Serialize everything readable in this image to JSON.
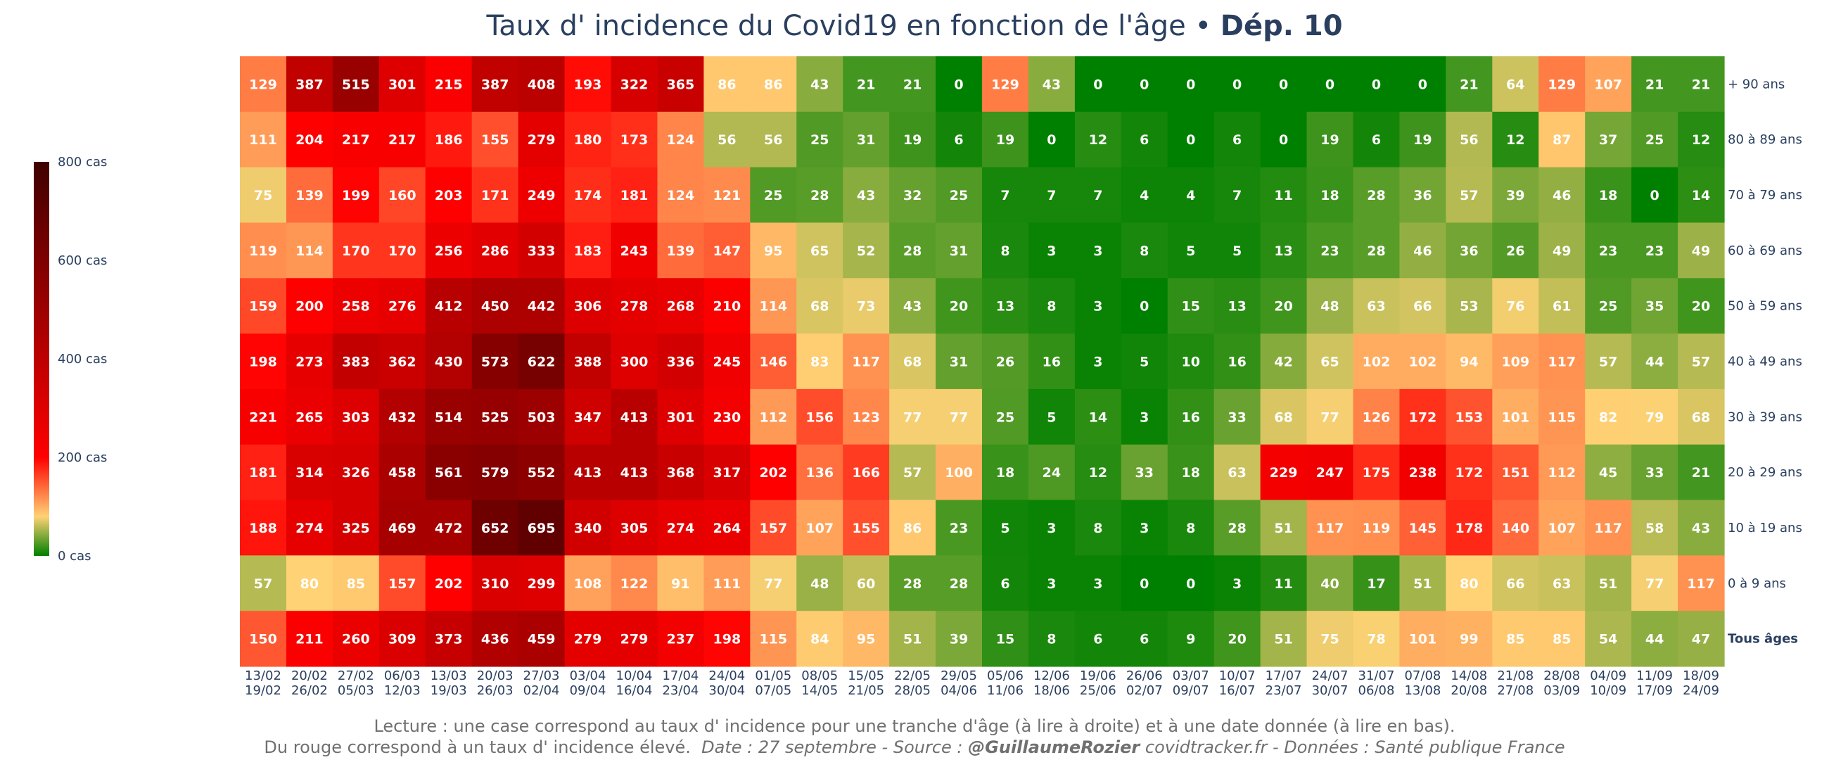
{
  "title": {
    "main": "Taux d' incidence du Covid19 en fonction de l'âge",
    "separator": " • ",
    "dept": "Dép. 10"
  },
  "colorbar": {
    "ticks": [
      "0 cas",
      "200 cas",
      "400 cas",
      "600 cas",
      "800 cas"
    ],
    "tick_values": [
      0,
      200,
      400,
      600,
      800
    ],
    "colors": [
      "#008000",
      "#ffd275",
      "#ff0000",
      "#b00000",
      "#400000"
    ]
  },
  "footer": {
    "line1": "Lecture : une case correspond au taux d' incidence pour une tranche d'âge (à lire à droite) et à une date donnée (à lire en bas).",
    "line2_normal": "Du rouge correspond à un taux d' incidence élevé.  ",
    "line2_italic": "Date : 27 septembre - Source : ",
    "line2_bold": "@GuillaumeRozier",
    "line2_tail": " covidtracker.fr - Données : Santé publique France"
  },
  "chart_data": {
    "type": "heatmap",
    "title": "Taux d' incidence du Covid19 en fonction de l'âge • Dép. 10",
    "x_top": [
      "13/02",
      "20/02",
      "27/02",
      "06/03",
      "13/03",
      "20/03",
      "27/03",
      "03/04",
      "10/04",
      "17/04",
      "24/04",
      "01/05",
      "08/05",
      "15/05",
      "22/05",
      "29/05",
      "05/06",
      "12/06",
      "19/06",
      "26/06",
      "03/07",
      "10/07",
      "17/07",
      "24/07",
      "31/07",
      "07/08",
      "14/08",
      "21/08",
      "28/08",
      "04/09",
      "11/09",
      "18/09"
    ],
    "x_bottom": [
      "19/02",
      "26/02",
      "05/03",
      "12/03",
      "19/03",
      "26/03",
      "02/04",
      "09/04",
      "16/04",
      "23/04",
      "30/04",
      "07/05",
      "14/05",
      "21/05",
      "28/05",
      "04/06",
      "11/06",
      "18/06",
      "25/06",
      "02/07",
      "09/07",
      "16/07",
      "23/07",
      "30/07",
      "06/08",
      "13/08",
      "20/08",
      "27/08",
      "03/09",
      "10/09",
      "17/09",
      "24/09"
    ],
    "rows": [
      "+ 90 ans",
      "80 à 89 ans",
      "70 à 79 ans",
      "60 à 69 ans",
      "50 à 59 ans",
      "40 à 49 ans",
      "30 à 39 ans",
      "20 à 29 ans",
      "10 à 19 ans",
      "0 à 9 ans",
      "Tous âges"
    ],
    "values": [
      [
        129,
        387,
        515,
        301,
        215,
        387,
        408,
        193,
        322,
        365,
        86,
        86,
        43,
        21,
        21,
        0,
        129,
        43,
        0,
        0,
        0,
        0,
        0,
        0,
        0,
        0,
        21,
        64,
        129,
        107,
        21,
        21
      ],
      [
        111,
        204,
        217,
        217,
        186,
        155,
        279,
        180,
        173,
        124,
        56,
        56,
        25,
        31,
        19,
        6,
        19,
        0,
        12,
        6,
        0,
        6,
        0,
        19,
        6,
        19,
        56,
        12,
        87,
        37,
        25,
        12
      ],
      [
        75,
        139,
        199,
        160,
        203,
        171,
        249,
        174,
        181,
        124,
        121,
        25,
        28,
        43,
        32,
        25,
        7,
        7,
        7,
        4,
        4,
        7,
        11,
        18,
        28,
        36,
        57,
        39,
        46,
        18,
        0,
        14
      ],
      [
        119,
        114,
        170,
        170,
        256,
        286,
        333,
        183,
        243,
        139,
        147,
        95,
        65,
        52,
        28,
        31,
        8,
        3,
        3,
        8,
        5,
        5,
        13,
        23,
        28,
        46,
        36,
        26,
        49,
        23,
        23,
        49
      ],
      [
        159,
        200,
        258,
        276,
        412,
        450,
        442,
        306,
        278,
        268,
        210,
        114,
        68,
        73,
        43,
        20,
        13,
        8,
        3,
        0,
        15,
        13,
        20,
        48,
        63,
        66,
        53,
        76,
        61,
        25,
        35,
        20
      ],
      [
        198,
        273,
        383,
        362,
        430,
        573,
        622,
        388,
        300,
        336,
        245,
        146,
        83,
        117,
        68,
        31,
        26,
        16,
        3,
        5,
        10,
        16,
        42,
        65,
        102,
        102,
        94,
        109,
        117,
        57,
        44,
        57
      ],
      [
        221,
        265,
        303,
        432,
        514,
        525,
        503,
        347,
        413,
        301,
        230,
        112,
        156,
        123,
        77,
        77,
        25,
        5,
        14,
        3,
        16,
        33,
        68,
        77,
        126,
        172,
        153,
        101,
        115,
        82,
        79,
        68
      ],
      [
        181,
        314,
        326,
        458,
        561,
        579,
        552,
        413,
        413,
        368,
        317,
        202,
        136,
        166,
        57,
        100,
        18,
        24,
        12,
        33,
        18,
        63,
        229,
        247,
        175,
        238,
        172,
        151,
        112,
        45,
        33,
        21
      ],
      [
        188,
        274,
        325,
        469,
        472,
        652,
        695,
        340,
        305,
        274,
        264,
        157,
        107,
        155,
        86,
        23,
        5,
        3,
        8,
        3,
        8,
        28,
        51,
        117,
        119,
        145,
        178,
        140,
        107,
        117,
        58,
        43
      ],
      [
        57,
        80,
        85,
        157,
        202,
        310,
        299,
        108,
        122,
        91,
        111,
        77,
        48,
        60,
        28,
        28,
        6,
        3,
        3,
        0,
        0,
        3,
        11,
        40,
        17,
        51,
        80,
        66,
        63,
        51,
        77,
        117
      ],
      [
        150,
        211,
        260,
        309,
        373,
        436,
        459,
        279,
        279,
        237,
        198,
        115,
        84,
        95,
        51,
        39,
        15,
        8,
        6,
        6,
        9,
        20,
        51,
        75,
        78,
        101,
        99,
        85,
        85,
        54,
        44,
        47
      ]
    ],
    "zmin": 0,
    "zmax": 800,
    "colorbar_label_suffix": " cas"
  }
}
